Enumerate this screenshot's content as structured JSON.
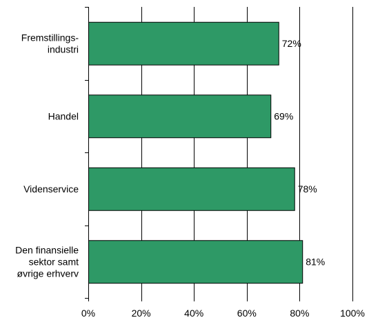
{
  "chart_data": {
    "type": "bar",
    "orientation": "horizontal",
    "categories": [
      [
        "Fremstillings-",
        "industri"
      ],
      [
        "Handel"
      ],
      [
        "Videnservice"
      ],
      [
        "Den finansielle",
        "sektor samt",
        "øvrige erhverv"
      ]
    ],
    "values": [
      72,
      69,
      78,
      81
    ],
    "data_labels": [
      "72%",
      "69%",
      "78%",
      "81%"
    ],
    "xlim": [
      0,
      100
    ],
    "x_ticks": [
      0,
      20,
      40,
      60,
      80,
      100
    ],
    "x_tick_labels": [
      "0%",
      "20%",
      "40%",
      "60%",
      "80%",
      "100%"
    ],
    "grid": "vertical",
    "legend": "none",
    "colors": {
      "bar": "#2e9966",
      "bar_border": "#000000",
      "grid": "#000000"
    }
  }
}
